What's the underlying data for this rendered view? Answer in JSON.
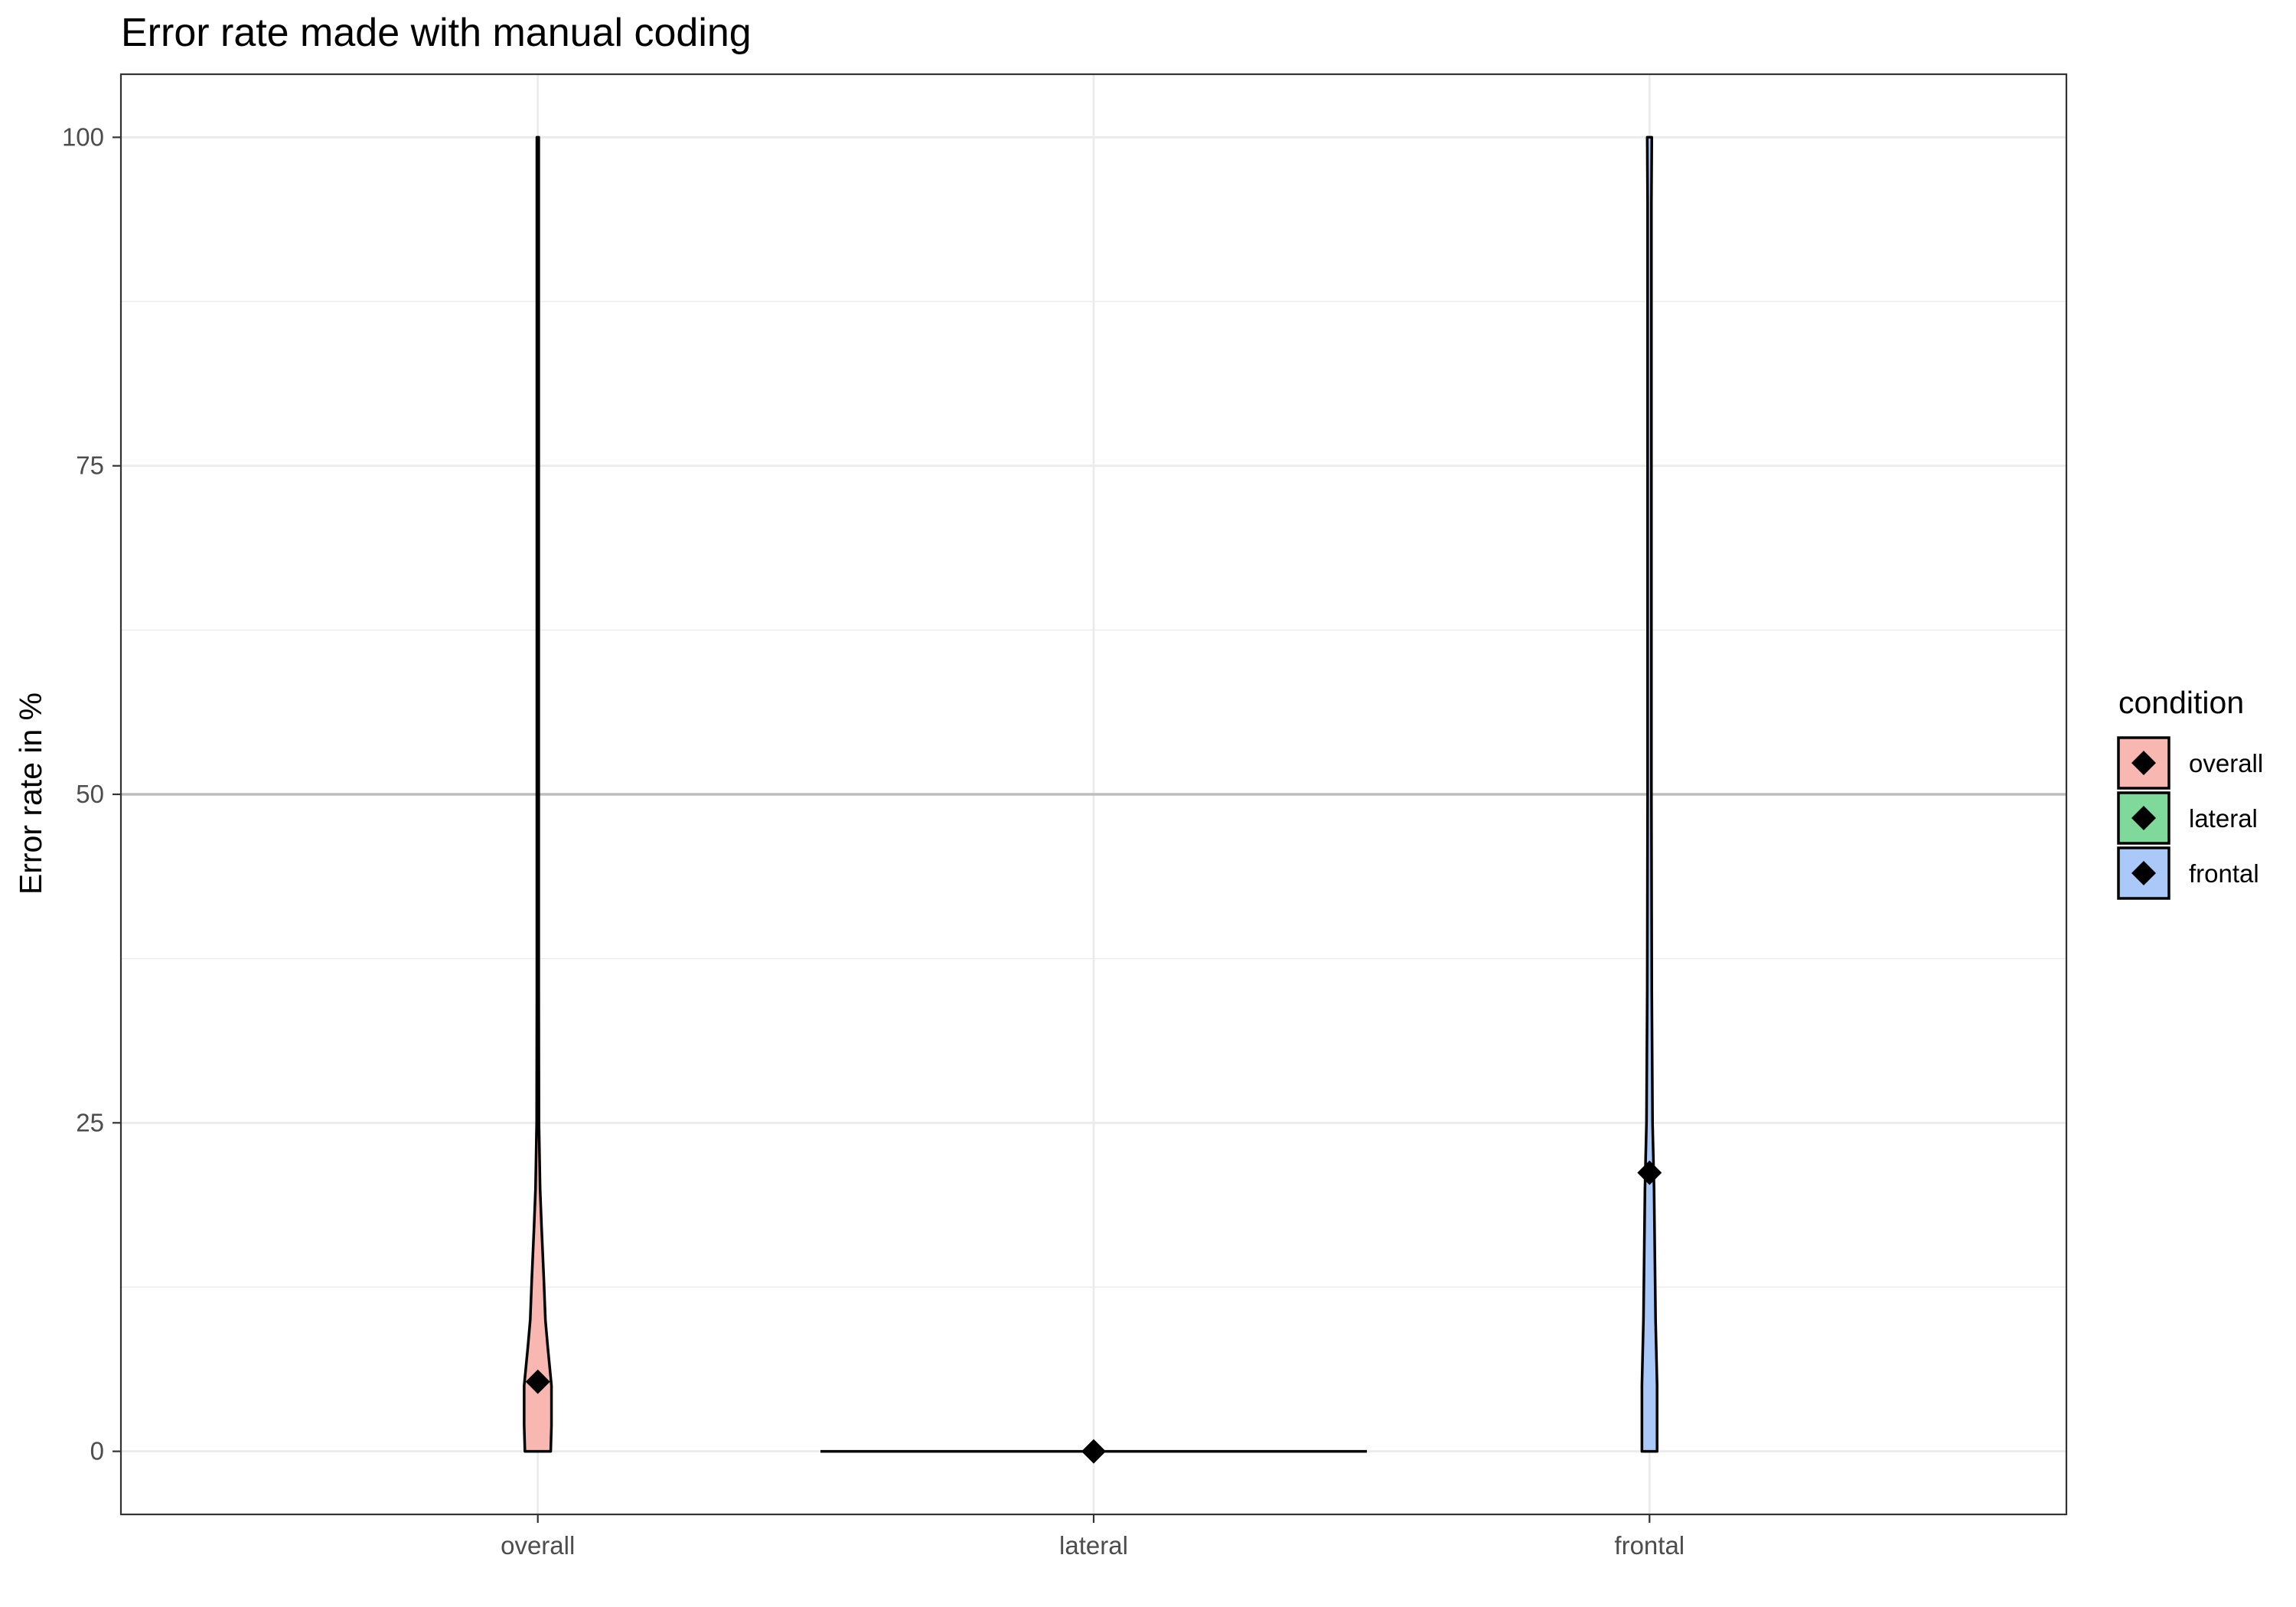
{
  "chart_data": {
    "type": "violin",
    "title": "Error rate made with manual coding",
    "xlabel": "",
    "ylabel": "Error rate in %",
    "categories": [
      "overall",
      "lateral",
      "frontal"
    ],
    "ylim": [
      -4.8,
      104.8
    ],
    "yticks": [
      0,
      25,
      50,
      75,
      100
    ],
    "reference_line": 50,
    "grid": true,
    "legend": {
      "title": "condition",
      "position": "right",
      "entries": [
        "overall",
        "lateral",
        "frontal"
      ]
    },
    "colors": {
      "overall": "#f8b7b1",
      "lateral": "#7fd99a",
      "frontal": "#aac8f8",
      "outline": "#000000",
      "reference_line": "#bdbdbd",
      "grid": "#ebebeb"
    },
    "series": [
      {
        "name": "overall",
        "mean": 5.3,
        "min": 0,
        "max": 100,
        "density_profile": [
          [
            0,
            0.017
          ],
          [
            2,
            0.018
          ],
          [
            5,
            0.018
          ],
          [
            8,
            0.013
          ],
          [
            10,
            0.01
          ],
          [
            13,
            0.008
          ],
          [
            17,
            0.005
          ],
          [
            20,
            0.003
          ],
          [
            25,
            0.0015
          ],
          [
            35,
            0.001
          ],
          [
            50,
            0.001
          ],
          [
            75,
            0.001
          ],
          [
            100,
            0.001
          ]
        ]
      },
      {
        "name": "lateral",
        "mean": 0,
        "min": 0,
        "max": 0,
        "density_profile": [
          [
            0,
            0.36
          ]
        ]
      },
      {
        "name": "frontal",
        "mean": 21.2,
        "min": 0,
        "max": 100,
        "density_profile": [
          [
            0,
            0.01
          ],
          [
            5,
            0.01
          ],
          [
            10,
            0.008
          ],
          [
            15,
            0.007
          ],
          [
            20,
            0.006
          ],
          [
            25,
            0.004
          ],
          [
            35,
            0.003
          ],
          [
            50,
            0.0025
          ],
          [
            75,
            0.0025
          ],
          [
            95,
            0.0025
          ],
          [
            100,
            0.003
          ]
        ]
      }
    ]
  }
}
